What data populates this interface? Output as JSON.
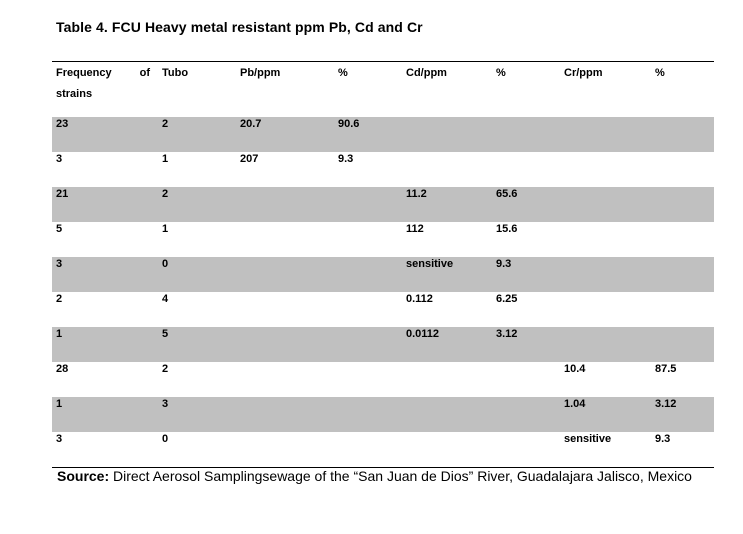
{
  "title": "Table 4. FCU Heavy metal resistant ppm Pb, Cd and Cr",
  "headers": {
    "freq_line1_a": "Frequency",
    "freq_line1_b": "of",
    "freq_line2": "strains",
    "tubo": "Tubo",
    "pb": "Pb/ppm",
    "pb_pct": "%",
    "cd": "Cd/ppm",
    "cd_pct": "%",
    "cr": "Cr/ppm",
    "cr_pct": "%"
  },
  "rows": [
    {
      "freq": "23",
      "tubo": "2",
      "pb": "20.7",
      "pb_pct": "90.6",
      "cd": "",
      "cd_pct": "",
      "cr": "",
      "cr_pct": ""
    },
    {
      "freq": "3",
      "tubo": "1",
      "pb": "207",
      "pb_pct": "9.3",
      "cd": "",
      "cd_pct": "",
      "cr": "",
      "cr_pct": ""
    },
    {
      "freq": "21",
      "tubo": "2",
      "pb": "",
      "pb_pct": "",
      "cd": "11.2",
      "cd_pct": "65.6",
      "cr": "",
      "cr_pct": ""
    },
    {
      "freq": "5",
      "tubo": "1",
      "pb": "",
      "pb_pct": "",
      "cd": "112",
      "cd_pct": "15.6",
      "cr": "",
      "cr_pct": ""
    },
    {
      "freq": "3",
      "tubo": "0",
      "pb": "",
      "pb_pct": "",
      "cd": "sensitive",
      "cd_pct": "9.3",
      "cr": "",
      "cr_pct": ""
    },
    {
      "freq": "2",
      "tubo": "4",
      "pb": "",
      "pb_pct": "",
      "cd": "0.112",
      "cd_pct": "6.25",
      "cr": "",
      "cr_pct": ""
    },
    {
      "freq": "1",
      "tubo": "5",
      "pb": "",
      "pb_pct": "",
      "cd": "0.0112",
      "cd_pct": "3.12",
      "cr": "",
      "cr_pct": ""
    },
    {
      "freq": "28",
      "tubo": "2",
      "pb": "",
      "pb_pct": "",
      "cd": "",
      "cd_pct": "",
      "cr": "10.4",
      "cr_pct": "87.5"
    },
    {
      "freq": "1",
      "tubo": "3",
      "pb": "",
      "pb_pct": "",
      "cd": "",
      "cd_pct": "",
      "cr": "1.04",
      "cr_pct": "3.12"
    },
    {
      "freq": "3",
      "tubo": "0",
      "pb": "",
      "pb_pct": "",
      "cd": "",
      "cd_pct": "",
      "cr": "sensitive",
      "cr_pct": "9.3"
    }
  ],
  "row_shading": [
    "shaded",
    "plain",
    "shaded",
    "plain",
    "shaded",
    "plain",
    "shaded",
    "plain",
    "shaded",
    "plain"
  ],
  "colors": {
    "shade": "#c0c0c0",
    "rule": "#000000"
  },
  "source": {
    "label": "Source:",
    "text": " Direct Aerosol Samplingsewage of the “San Juan de Dios” River, Guadalajara Jalisco, Mexico"
  }
}
